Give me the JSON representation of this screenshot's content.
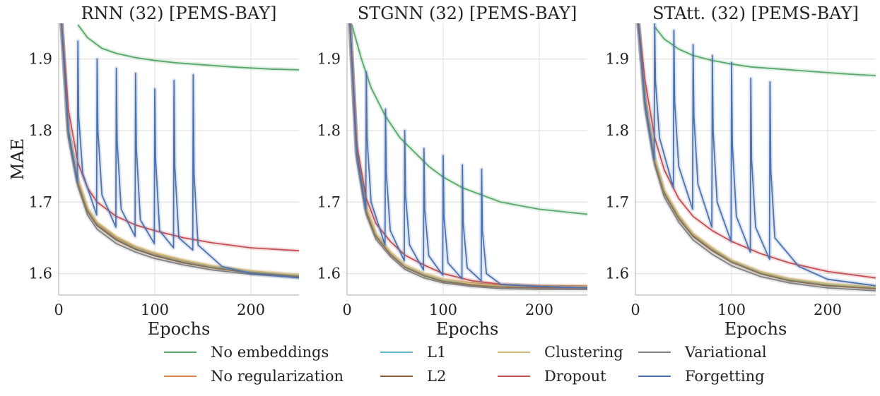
{
  "colors": {
    "No embeddings": "#55a868",
    "No regularization": "#dd8452",
    "L1": "#64b5cd",
    "L2": "#8c613c",
    "Clustering": "#ccb974",
    "Dropout": "#c44e52",
    "Variational": "#7f7f7f",
    "Forgetting": "#4c72b0"
  },
  "legend": {
    "entries": [
      "No embeddings",
      "L1",
      "Clustering",
      "Variational",
      "No regularization",
      "L2",
      "Dropout",
      "Forgetting"
    ]
  },
  "chart_data": [
    {
      "type": "line",
      "title": "RNN (32) [PEMS-BAY]",
      "xlabel": "Epochs",
      "ylabel": "MAE",
      "xlim": [
        0,
        250
      ],
      "ylim": [
        1.57,
        1.95
      ],
      "xticks": [
        0,
        100,
        200
      ],
      "yticks": [
        1.6,
        1.7,
        1.8,
        1.9
      ],
      "xtick_labels": [
        "0",
        "100",
        "200"
      ],
      "ytick_labels": [
        "1.6",
        "1.7",
        "1.8",
        "1.9"
      ],
      "grid": true,
      "series": [
        {
          "name": "No embeddings",
          "x": [
            20,
            30,
            45,
            60,
            80,
            100,
            120,
            150,
            180,
            220,
            250
          ],
          "y": [
            1.948,
            1.93,
            1.915,
            1.908,
            1.902,
            1.898,
            1.895,
            1.892,
            1.889,
            1.886,
            1.885
          ]
        },
        {
          "name": "No regularization",
          "x": [
            3,
            10,
            20,
            30,
            40,
            60,
            80,
            100,
            130,
            160,
            200,
            250
          ],
          "y": [
            1.95,
            1.8,
            1.73,
            1.69,
            1.67,
            1.65,
            1.637,
            1.628,
            1.618,
            1.61,
            1.603,
            1.598
          ]
        },
        {
          "name": "L1",
          "x": [
            3,
            10,
            20,
            30,
            40,
            60,
            80,
            100,
            130,
            160,
            200,
            250
          ],
          "y": [
            1.95,
            1.8,
            1.728,
            1.688,
            1.668,
            1.648,
            1.635,
            1.626,
            1.616,
            1.609,
            1.602,
            1.597
          ]
        },
        {
          "name": "L2",
          "x": [
            3,
            10,
            20,
            30,
            40,
            60,
            80,
            100,
            130,
            160,
            200,
            250
          ],
          "y": [
            1.95,
            1.8,
            1.727,
            1.687,
            1.667,
            1.647,
            1.634,
            1.625,
            1.615,
            1.608,
            1.601,
            1.596
          ]
        },
        {
          "name": "Clustering",
          "x": [
            3,
            10,
            20,
            30,
            40,
            60,
            80,
            100,
            130,
            160,
            200,
            250
          ],
          "y": [
            1.95,
            1.8,
            1.732,
            1.692,
            1.672,
            1.652,
            1.638,
            1.629,
            1.619,
            1.611,
            1.604,
            1.598
          ]
        },
        {
          "name": "Dropout",
          "x": [
            3,
            10,
            20,
            30,
            40,
            60,
            80,
            100,
            130,
            160,
            200,
            250
          ],
          "y": [
            1.95,
            1.83,
            1.755,
            1.72,
            1.7,
            1.68,
            1.668,
            1.66,
            1.65,
            1.643,
            1.636,
            1.632
          ]
        },
        {
          "name": "Variational",
          "x": [
            3,
            10,
            20,
            30,
            40,
            60,
            80,
            100,
            130,
            160,
            200,
            250
          ],
          "y": [
            1.95,
            1.79,
            1.722,
            1.682,
            1.662,
            1.642,
            1.63,
            1.621,
            1.612,
            1.605,
            1.599,
            1.595
          ]
        },
        {
          "name": "Forgetting",
          "x": [
            3,
            10,
            19.5,
            20,
            20.8,
            25,
            39.5,
            40,
            40.8,
            45,
            59.5,
            60,
            60.8,
            65,
            79.5,
            80,
            80.8,
            85,
            99.5,
            100,
            100.8,
            105,
            119.5,
            120,
            120.8,
            125,
            139.5,
            140,
            140.8,
            145,
            170,
            200,
            250
          ],
          "y": [
            1.95,
            1.8,
            1.728,
            1.925,
            1.82,
            1.74,
            1.682,
            1.9,
            1.8,
            1.71,
            1.665,
            1.887,
            1.785,
            1.69,
            1.652,
            1.88,
            1.775,
            1.675,
            1.642,
            1.858,
            1.76,
            1.66,
            1.636,
            1.87,
            1.75,
            1.65,
            1.633,
            1.878,
            1.74,
            1.64,
            1.61,
            1.6,
            1.594
          ]
        }
      ]
    },
    {
      "type": "line",
      "title": "STGNN (32) [PEMS-BAY]",
      "xlabel": "Epochs",
      "ylabel": "",
      "xlim": [
        0,
        250
      ],
      "ylim": [
        1.57,
        1.95
      ],
      "xticks": [
        0,
        100,
        200
      ],
      "yticks": [
        1.6,
        1.7,
        1.8,
        1.9
      ],
      "xtick_labels": [
        "0",
        "100",
        "200"
      ],
      "ytick_labels": [
        "1.6",
        "1.7",
        "1.8",
        "1.9"
      ],
      "grid": true,
      "series": [
        {
          "name": "No embeddings",
          "x": [
            5,
            15,
            25,
            40,
            55,
            70,
            85,
            100,
            120,
            140,
            160,
            180,
            200,
            250
          ],
          "y": [
            1.948,
            1.9,
            1.86,
            1.82,
            1.79,
            1.77,
            1.75,
            1.735,
            1.72,
            1.71,
            1.7,
            1.695,
            1.69,
            1.683
          ]
        },
        {
          "name": "No regularization",
          "x": [
            3,
            10,
            20,
            30,
            45,
            60,
            80,
            100,
            130,
            160,
            200,
            250
          ],
          "y": [
            1.95,
            1.77,
            1.69,
            1.655,
            1.63,
            1.612,
            1.6,
            1.592,
            1.587,
            1.584,
            1.583,
            1.583
          ]
        },
        {
          "name": "L1",
          "x": [
            3,
            10,
            20,
            30,
            45,
            60,
            80,
            100,
            130,
            160,
            200,
            250
          ],
          "y": [
            1.95,
            1.77,
            1.688,
            1.653,
            1.628,
            1.61,
            1.598,
            1.59,
            1.585,
            1.582,
            1.581,
            1.581
          ]
        },
        {
          "name": "L2",
          "x": [
            3,
            10,
            20,
            30,
            45,
            60,
            80,
            100,
            130,
            160,
            200,
            250
          ],
          "y": [
            1.95,
            1.77,
            1.687,
            1.652,
            1.627,
            1.609,
            1.597,
            1.589,
            1.584,
            1.581,
            1.58,
            1.58
          ]
        },
        {
          "name": "Clustering",
          "x": [
            3,
            10,
            20,
            30,
            45,
            60,
            80,
            100,
            130,
            160,
            200,
            250
          ],
          "y": [
            1.95,
            1.78,
            1.692,
            1.656,
            1.63,
            1.612,
            1.6,
            1.592,
            1.586,
            1.583,
            1.582,
            1.582
          ]
        },
        {
          "name": "Dropout",
          "x": [
            3,
            10,
            20,
            30,
            45,
            60,
            80,
            100,
            130,
            160,
            200,
            250
          ],
          "y": [
            1.95,
            1.78,
            1.705,
            1.67,
            1.645,
            1.626,
            1.612,
            1.6,
            1.59,
            1.585,
            1.582,
            1.58
          ]
        },
        {
          "name": "Variational",
          "x": [
            3,
            10,
            20,
            30,
            45,
            60,
            80,
            100,
            130,
            160,
            200,
            250
          ],
          "y": [
            1.95,
            1.76,
            1.682,
            1.648,
            1.624,
            1.606,
            1.594,
            1.587,
            1.582,
            1.579,
            1.578,
            1.578
          ]
        },
        {
          "name": "Forgetting",
          "x": [
            3,
            10,
            19.5,
            20,
            20.8,
            25,
            39.5,
            40,
            40.8,
            45,
            59.5,
            60,
            60.8,
            65,
            79.5,
            80,
            80.8,
            85,
            99.5,
            100,
            100.8,
            105,
            119.5,
            120,
            120.8,
            125,
            139.5,
            140,
            140.8,
            145,
            160,
            200,
            250
          ],
          "y": [
            1.95,
            1.77,
            1.69,
            1.882,
            1.79,
            1.7,
            1.64,
            1.83,
            1.74,
            1.66,
            1.618,
            1.8,
            1.71,
            1.64,
            1.605,
            1.775,
            1.69,
            1.625,
            1.598,
            1.765,
            1.68,
            1.615,
            1.593,
            1.752,
            1.67,
            1.608,
            1.59,
            1.746,
            1.66,
            1.6,
            1.585,
            1.582,
            1.58
          ]
        }
      ]
    },
    {
      "type": "line",
      "title": "STAtt. (32) [PEMS-BAY]",
      "xlabel": "Epochs",
      "ylabel": "",
      "xlim": [
        0,
        250
      ],
      "ylim": [
        1.57,
        1.95
      ],
      "xticks": [
        0,
        100,
        200
      ],
      "yticks": [
        1.6,
        1.7,
        1.8,
        1.9
      ],
      "xtick_labels": [
        "0",
        "100",
        "200"
      ],
      "ytick_labels": [
        "1.6",
        "1.7",
        "1.8",
        "1.9"
      ],
      "grid": true,
      "series": [
        {
          "name": "No embeddings",
          "x": [
            20,
            30,
            45,
            60,
            80,
            100,
            120,
            150,
            180,
            220,
            250
          ],
          "y": [
            1.945,
            1.928,
            1.914,
            1.905,
            1.898,
            1.893,
            1.889,
            1.886,
            1.883,
            1.879,
            1.877
          ]
        },
        {
          "name": "No regularization",
          "x": [
            3,
            10,
            20,
            30,
            45,
            60,
            80,
            100,
            130,
            160,
            200,
            250
          ],
          "y": [
            1.95,
            1.84,
            1.76,
            1.715,
            1.68,
            1.655,
            1.635,
            1.618,
            1.602,
            1.592,
            1.585,
            1.58
          ]
        },
        {
          "name": "L1",
          "x": [
            3,
            10,
            20,
            30,
            45,
            60,
            80,
            100,
            130,
            160,
            200,
            250
          ],
          "y": [
            1.95,
            1.84,
            1.758,
            1.713,
            1.678,
            1.653,
            1.633,
            1.617,
            1.601,
            1.591,
            1.584,
            1.58
          ]
        },
        {
          "name": "L2",
          "x": [
            3,
            10,
            20,
            30,
            45,
            60,
            80,
            100,
            130,
            160,
            200,
            250
          ],
          "y": [
            1.95,
            1.84,
            1.757,
            1.712,
            1.677,
            1.652,
            1.632,
            1.616,
            1.6,
            1.59,
            1.583,
            1.579
          ]
        },
        {
          "name": "Clustering",
          "x": [
            3,
            10,
            20,
            30,
            45,
            60,
            80,
            100,
            130,
            160,
            200,
            250
          ],
          "y": [
            1.95,
            1.85,
            1.762,
            1.717,
            1.682,
            1.656,
            1.636,
            1.619,
            1.603,
            1.593,
            1.586,
            1.581
          ]
        },
        {
          "name": "Dropout",
          "x": [
            3,
            10,
            20,
            30,
            45,
            60,
            80,
            100,
            130,
            160,
            200,
            250
          ],
          "y": [
            1.95,
            1.87,
            1.79,
            1.745,
            1.705,
            1.68,
            1.66,
            1.645,
            1.628,
            1.615,
            1.603,
            1.594
          ]
        },
        {
          "name": "Variational",
          "x": [
            3,
            10,
            20,
            30,
            45,
            60,
            80,
            100,
            130,
            160,
            200,
            250
          ],
          "y": [
            1.95,
            1.83,
            1.752,
            1.707,
            1.672,
            1.647,
            1.627,
            1.611,
            1.596,
            1.587,
            1.58,
            1.576
          ]
        },
        {
          "name": "Forgetting",
          "x": [
            3,
            10,
            19.5,
            20,
            20.8,
            25,
            39.5,
            40,
            40.8,
            45,
            59.5,
            60,
            60.8,
            65,
            79.5,
            80,
            80.8,
            85,
            99.5,
            100,
            100.8,
            105,
            119.5,
            120,
            120.8,
            125,
            139.5,
            140,
            140.8,
            145,
            170,
            200,
            250
          ],
          "y": [
            1.95,
            1.84,
            1.76,
            1.95,
            1.87,
            1.79,
            1.72,
            1.94,
            1.84,
            1.75,
            1.69,
            1.92,
            1.82,
            1.725,
            1.665,
            1.905,
            1.8,
            1.7,
            1.645,
            1.895,
            1.78,
            1.68,
            1.63,
            1.873,
            1.76,
            1.665,
            1.62,
            1.868,
            1.745,
            1.65,
            1.61,
            1.592,
            1.583
          ]
        }
      ]
    }
  ]
}
